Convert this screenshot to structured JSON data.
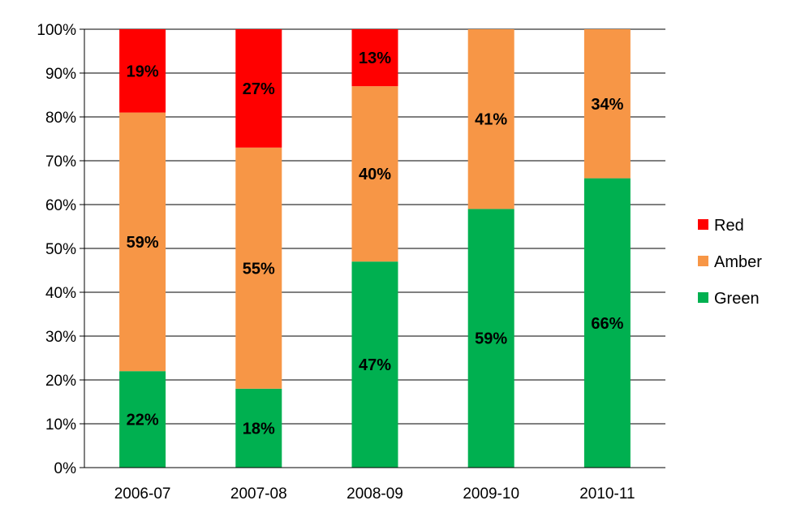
{
  "chart_data": {
    "type": "bar",
    "stacked": true,
    "categories": [
      "2006-07",
      "2007-08",
      "2008-09",
      "2009-10",
      "2010-11"
    ],
    "series": [
      {
        "name": "Green",
        "color": "#00B050",
        "values": [
          22,
          18,
          47,
          59,
          66
        ],
        "labels": [
          "22%",
          "18%",
          "47%",
          "59%",
          "66%"
        ]
      },
      {
        "name": "Amber",
        "color": "#F79646",
        "values": [
          59,
          55,
          40,
          41,
          34
        ],
        "labels": [
          "59%",
          "55%",
          "40%",
          "41%",
          "34%"
        ]
      },
      {
        "name": "Red",
        "color": "#FF0000",
        "values": [
          19,
          27,
          13,
          0,
          0
        ],
        "labels": [
          "19%",
          "27%",
          "13%",
          "",
          ""
        ]
      }
    ],
    "yticks": [
      "0%",
      "10%",
      "20%",
      "30%",
      "40%",
      "50%",
      "60%",
      "70%",
      "80%",
      "90%",
      "100%"
    ],
    "ylim": [
      0,
      100
    ],
    "grid": true,
    "legend_position": "right",
    "legend_order": [
      "Red",
      "Amber",
      "Green"
    ]
  }
}
